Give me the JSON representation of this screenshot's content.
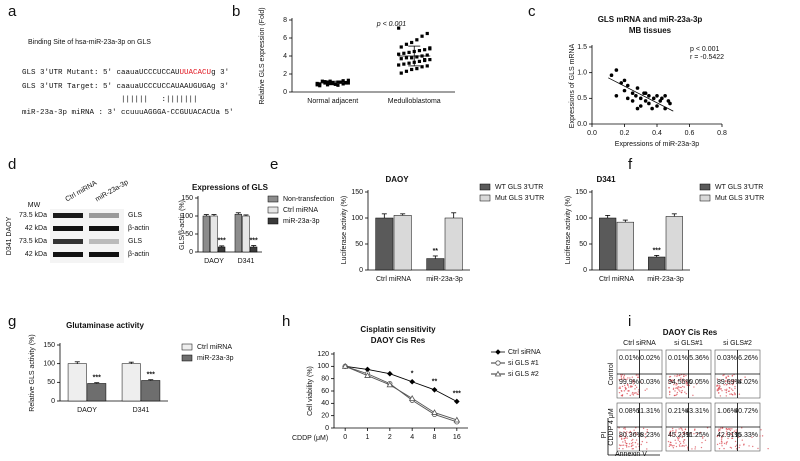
{
  "letters": [
    "a",
    "b",
    "c",
    "d",
    "e",
    "f",
    "g",
    "h",
    "i"
  ],
  "panel_a": {
    "title": "Binding Site of hsa-miR-23a-3p on GLS",
    "mutant": {
      "label": "GLS 3'UTR Mutant: 5'",
      "seq": "caauaUCCCUCCAU",
      "mut": "UUACACU",
      "end": "g 3'"
    },
    "target": "GLS 3'UTR Target: 5' caauaUCCCUCCAUAAUGUGAg 3'",
    "pairing": "||||||   :|||||||",
    "mirna": "miR-23a-3p miRNA : 3' ccuuuAGGGA-CCGUUACACUa 5'"
  },
  "panel_d_blot": {
    "mw": "MW",
    "lanes": [
      "Ctrl miRNA",
      "miR-23a-3p"
    ],
    "cells": "D341  DAOY",
    "markers": [
      "73.5 kDa",
      "42 kDa",
      "73.5 kDa",
      "42 kDa"
    ],
    "proteins": [
      "GLS",
      "β-actin",
      "GLS",
      "β-actin"
    ]
  },
  "panel_i": {
    "title": "DAOY Cis Res",
    "columns": [
      "Ctrl siRNA",
      "si GLS#1",
      "si GLS#2"
    ],
    "rows": [
      "Control",
      "CDDP 4 μM"
    ],
    "x_label": "Annexin V",
    "y_label": "PI",
    "quadrants": [
      [
        [
          "0.01%",
          "0.02%",
          "99.9%",
          "0.03%"
        ],
        [
          "0.01%",
          "5.36%",
          "94.55%",
          "0.05%"
        ],
        [
          "0.03%",
          "6.26%",
          "89.69%",
          "4.02%"
        ]
      ],
      [
        [
          "0.08%",
          "11.31%",
          "80.36%",
          "8.23%"
        ],
        [
          "0.21%",
          "43.31%",
          "45.23%",
          "11.25%"
        ],
        [
          "1.06%",
          "40.72%",
          "42.91%",
          "15.33%"
        ]
      ]
    ]
  },
  "chart_data": [
    {
      "type": "dotplot",
      "y_label": "Relative GLS expression (Fold)",
      "annotation": "p < 0.001",
      "color": "#000000",
      "categories": [
        "Normal adjacent",
        "Medulloblastoma"
      ],
      "points": [
        [
          0.8,
          1.0,
          1.1,
          0.9,
          1.2,
          1.0,
          0.7,
          1.3,
          0.9,
          1.1,
          1.0,
          0.8,
          1.2,
          0.95,
          1.05,
          1.1,
          0.85,
          1.0,
          1.15,
          0.9,
          1.0,
          1.25,
          0.75,
          1.0,
          1.1
        ],
        [
          7.1,
          6.5,
          6.2,
          5.8,
          5.5,
          5.3,
          5.0,
          4.9,
          4.7,
          4.6,
          4.5,
          4.4,
          4.3,
          4.2,
          4.1,
          4.0,
          3.9,
          3.8,
          3.8,
          3.7,
          3.6,
          3.5,
          3.4,
          3.3,
          3.2,
          3.1,
          3.0,
          2.9,
          2.8,
          2.6,
          2.5,
          2.3,
          2.1,
          4.8,
          3.6
        ]
      ],
      "means": [
        1.0,
        4.0
      ],
      "sd": [
        0.2,
        1.1
      ],
      "ylim": [
        0,
        8
      ],
      "yticks": [
        0,
        2,
        4,
        6,
        8
      ]
    },
    {
      "type": "scatter",
      "title": [
        "GLS mRNA and miR-23a-3p",
        "MB tissues"
      ],
      "x_label": "Expressions of miR-23a-3p",
      "y_label": "Expressions of GLS mRNA",
      "annotation": [
        "p < 0.001",
        "r = -0.5422"
      ],
      "color": "#000000",
      "x": [
        0.12,
        0.15,
        0.18,
        0.2,
        0.22,
        0.22,
        0.25,
        0.25,
        0.27,
        0.28,
        0.3,
        0.3,
        0.32,
        0.33,
        0.35,
        0.35,
        0.37,
        0.38,
        0.4,
        0.4,
        0.42,
        0.43,
        0.45,
        0.45,
        0.47,
        0.48,
        0.2,
        0.28,
        0.33,
        0.15
      ],
      "y": [
        0.95,
        0.55,
        0.8,
        0.65,
        0.75,
        0.5,
        0.6,
        0.45,
        0.55,
        0.7,
        0.5,
        0.35,
        0.6,
        0.45,
        0.4,
        0.55,
        0.3,
        0.5,
        0.55,
        0.35,
        0.45,
        0.5,
        0.55,
        0.3,
        0.45,
        0.4,
        0.85,
        0.3,
        0.6,
        1.05
      ],
      "fit_x": [
        0.1,
        0.5
      ],
      "fit_y": [
        0.9,
        0.25
      ],
      "xlim": [
        0,
        0.8
      ],
      "xticks": [
        {
          "value": 0,
          "label": "0.0"
        },
        0.2,
        0.4,
        0.6,
        0.8
      ],
      "ylim": [
        0,
        1.5
      ],
      "yticks": [
        {
          "value": 0,
          "label": "0.0"
        },
        0.5,
        {
          "value": 1,
          "label": "1.0"
        },
        1.5
      ]
    },
    {
      "type": "bar",
      "title": "Expressions of GLS",
      "y_label": "GLS/β-actin (%)",
      "categories": [
        "DAOY",
        "D341"
      ],
      "ylim": [
        0,
        150
      ],
      "yticks": [
        0,
        50,
        100,
        150
      ],
      "series": [
        {
          "name": "Non-transfection",
          "color": "#8c8c8c",
          "values": [
            100,
            105
          ],
          "errors": [
            4,
            4
          ]
        },
        {
          "name": "Ctrl miRNA",
          "color": "#e6e6e6",
          "values": [
            100,
            100
          ],
          "errors": [
            4,
            3
          ]
        },
        {
          "name": "miR-23a-3p",
          "color": "#3a3a3a",
          "values": [
            14,
            14
          ],
          "errors": [
            3,
            4
          ],
          "significance": [
            "***",
            "***"
          ]
        }
      ]
    },
    {
      "type": "bar",
      "title": "DAOY",
      "y_label": "Luciferase activity (%)",
      "categories": [
        "Ctrl miRNA",
        "miR-23a-3p"
      ],
      "ylim": [
        0,
        150
      ],
      "yticks": [
        0,
        50,
        100,
        150
      ],
      "series": [
        {
          "name": "WT GLS 3'UTR",
          "color": "#5a5a5a",
          "values": [
            100,
            22
          ],
          "errors": [
            8,
            5
          ],
          "significance": [
            null,
            "**"
          ]
        },
        {
          "name": "Mut GLS 3'UTR",
          "color": "#d9d9d9",
          "values": [
            105,
            100
          ],
          "errors": [
            3,
            10
          ]
        }
      ]
    },
    {
      "type": "bar",
      "title": "D341",
      "y_label": "Luciferase activity (%)",
      "categories": [
        "Ctrl miRNA",
        "miR-23a-3p"
      ],
      "ylim": [
        0,
        150
      ],
      "yticks": [
        0,
        50,
        100,
        150
      ],
      "series": [
        {
          "name": "WT GLS 3'UTR",
          "color": "#5a5a5a",
          "values": [
            100,
            25
          ],
          "errors": [
            5,
            3
          ],
          "significance": [
            null,
            "***"
          ]
        },
        {
          "name": "Mut GLS 3'UTR",
          "color": "#d9d9d9",
          "values": [
            92,
            103
          ],
          "errors": [
            4,
            5
          ]
        }
      ]
    },
    {
      "type": "bar",
      "title": "Glutaminase activity",
      "y_label": "Relative GLS activity (%)",
      "categories": [
        "DAOY",
        "D341"
      ],
      "ylim": [
        0,
        150
      ],
      "yticks": [
        0,
        50,
        100,
        150
      ],
      "series": [
        {
          "name": "Ctrl miRNA",
          "color": "#eeeeee",
          "values": [
            100,
            100
          ],
          "errors": [
            5,
            4
          ]
        },
        {
          "name": "miR-23a-3p",
          "color": "#6e6e6e",
          "values": [
            47,
            55
          ],
          "errors": [
            2,
            2
          ],
          "significance": [
            "***",
            "***"
          ]
        }
      ]
    },
    {
      "type": "line",
      "title": [
        "Cisplatin sensitivity",
        "DAOY Cis Res"
      ],
      "x_label": "CDDP (μM)",
      "y_label": "Cell viability (%)",
      "categories": [
        "0",
        "1",
        "2",
        "4",
        "8",
        "16"
      ],
      "ylim": [
        0,
        120
      ],
      "yticks": [
        0,
        20,
        40,
        60,
        80,
        100,
        120
      ],
      "series": [
        {
          "name": "Ctrl siRNA",
          "color": "#000000",
          "marker": "diamond",
          "values": [
            100,
            95,
            88,
            75,
            62,
            43
          ],
          "significance": [
            null,
            null,
            null,
            "*",
            "**",
            "***"
          ]
        },
        {
          "name": "si GLS #1",
          "color": "#555555",
          "marker": "circle",
          "values": [
            100,
            88,
            72,
            45,
            22,
            10
          ]
        },
        {
          "name": "si GLS #2",
          "color": "#555555",
          "marker": "triangle",
          "values": [
            100,
            85,
            70,
            48,
            25,
            13
          ]
        }
      ]
    }
  ]
}
